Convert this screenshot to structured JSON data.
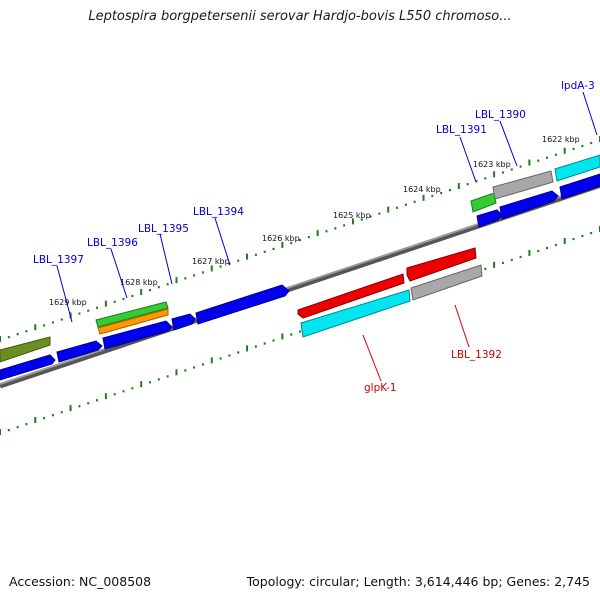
{
  "title": "Leptospira borgpetersenii serovar Hardjo-bovis L550 chromoso...",
  "footer": {
    "accession": "Accession: NC_008508",
    "summary": "Topology: circular; Length: 3,614,446 bp; Genes: 2,745"
  },
  "colors": {
    "backbone": "#7a7a7a",
    "tick": "#1f7a1f",
    "label_forward": "#0000cc",
    "label_reverse": "#cc0000",
    "blue": "#0000ee",
    "red": "#ee0000",
    "cyan": "#00e5ee",
    "gray": "#a8a8a8",
    "green": "#33cc33",
    "orange": "#ff9900",
    "olive": "#6b8e23"
  },
  "scale_labels": [
    "1629 kbp",
    "1628 kbp",
    "1627 kbp",
    "1626 kbp",
    "1625 kbp",
    "1624 kbp",
    "1623 kbp",
    "1622 kbp"
  ],
  "gene_labels": [
    {
      "text": "LBL_1397",
      "strand": "forward"
    },
    {
      "text": "LBL_1396",
      "strand": "forward"
    },
    {
      "text": "LBL_1395",
      "strand": "forward"
    },
    {
      "text": "LBL_1394",
      "strand": "forward"
    },
    {
      "text": "LBL_1391",
      "strand": "forward"
    },
    {
      "text": "LBL_1390",
      "strand": "forward"
    },
    {
      "text": "lpdA-3",
      "strand": "forward"
    },
    {
      "text": "glpK-1",
      "strand": "reverse"
    },
    {
      "text": "LBL_1392",
      "strand": "reverse"
    }
  ]
}
